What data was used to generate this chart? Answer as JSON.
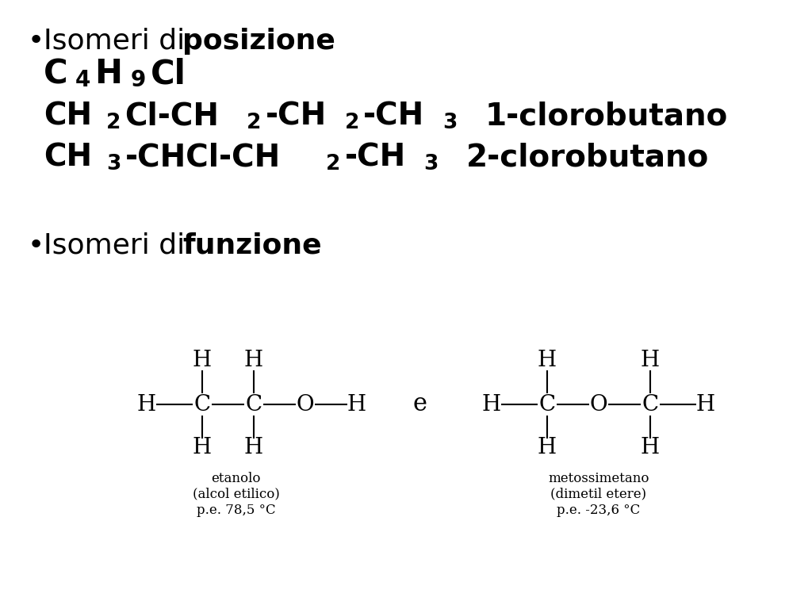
{
  "bg_color": "#ffffff",
  "bullet1_normal": "Isomeri di ",
  "bullet1_bold": "posizione",
  "bullet2_normal": "Isomeri di ",
  "bullet2_bold": "funzione",
  "etanolo_label": "etanolo",
  "etanolo_sub1": "(alcol etilico)",
  "etanolo_sub2": "p.e. 78,5 °C",
  "metoss_label": "metossimetano",
  "metoss_sub1": "(dimetil etere)",
  "metoss_sub2": "p.e. -23,6 °C",
  "connector": "e",
  "isomer1_name": "1-clorobutano",
  "isomer2_name": "2-clorobutano"
}
